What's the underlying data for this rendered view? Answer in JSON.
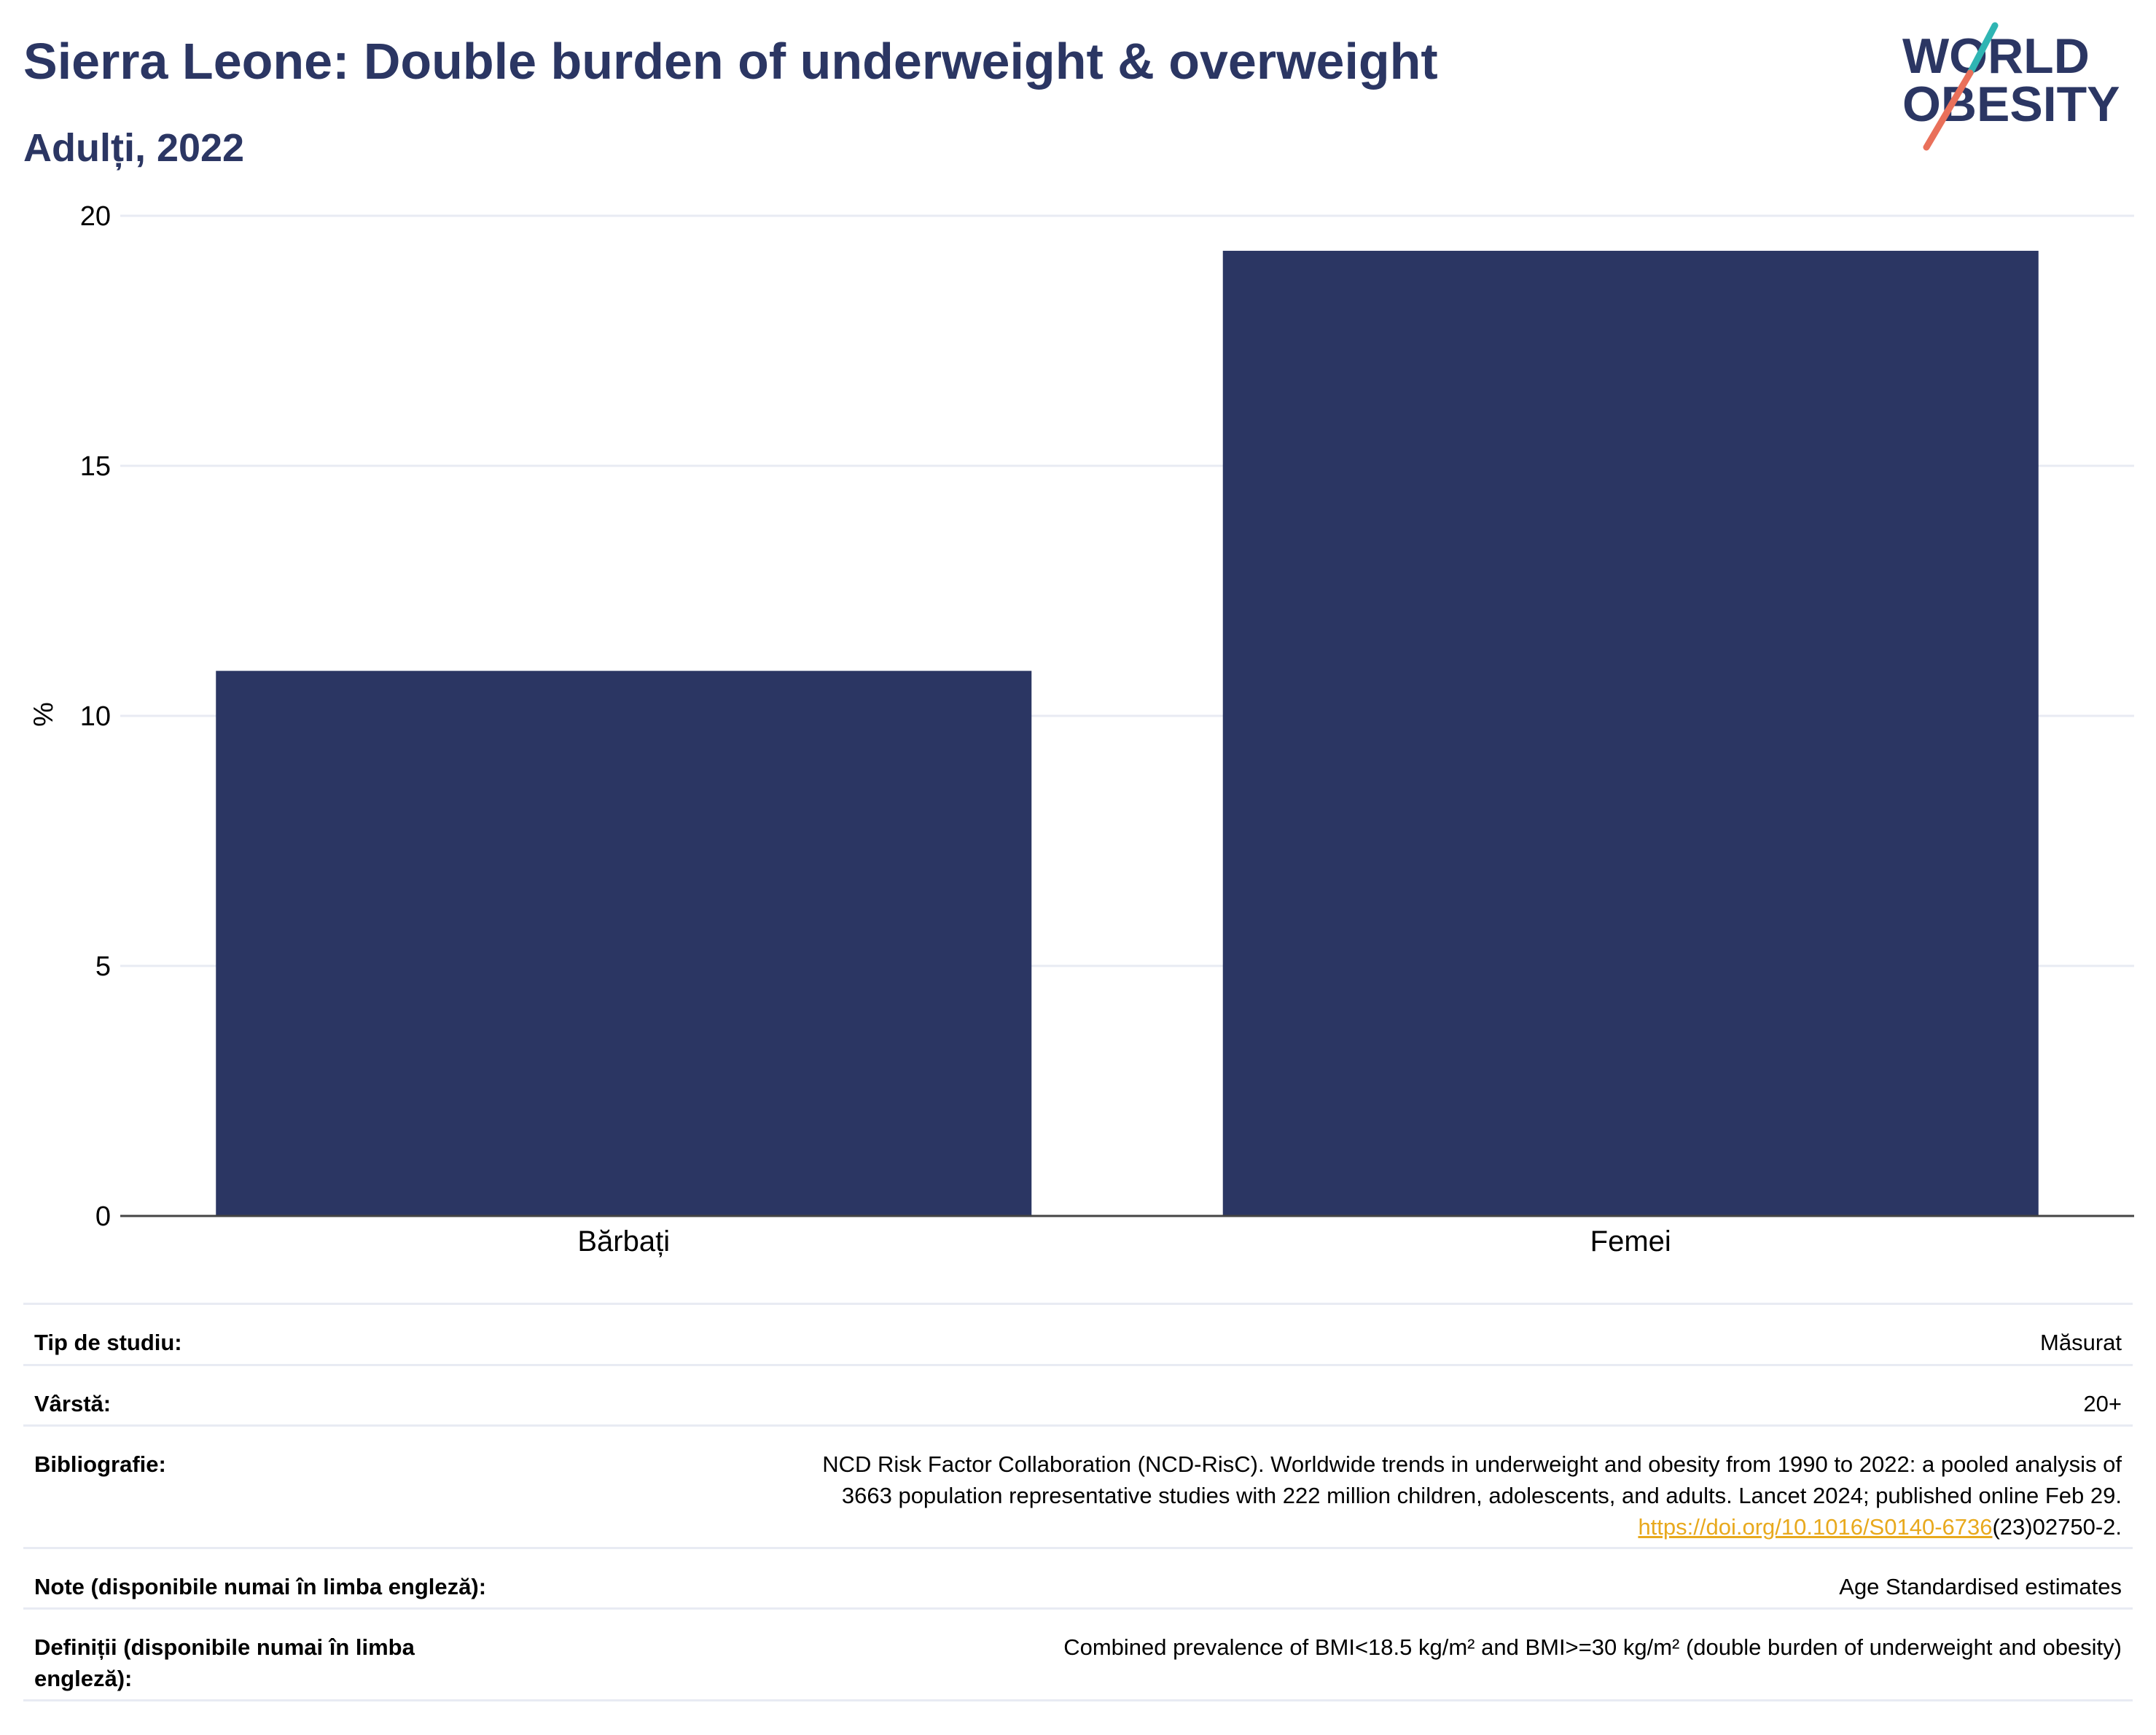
{
  "title": "Sierra Leone: Double burden of underweight & overweight",
  "subtitle": "Adulți, 2022",
  "logo": {
    "line1": "WORLD",
    "line2": "OBESITY",
    "text_color": "#2b3663",
    "slash_teal": "#2fb5b3",
    "slash_coral": "#e9705a"
  },
  "colors": {
    "bar": "#2b3663",
    "title": "#2b3663",
    "gridline": "#e8ebf3",
    "link": "#e8a91d"
  },
  "chart_data": {
    "type": "bar",
    "categories": [
      "Bărbați",
      "Femei"
    ],
    "values": [
      10.9,
      19.3
    ],
    "ylabel": "%",
    "xlabel": "",
    "ylim": [
      0,
      20
    ],
    "yticks": [
      0,
      5,
      10,
      15,
      20
    ],
    "grid": true
  },
  "meta": {
    "study_type_label": "Tip de studiu:",
    "study_type_value": "Măsurat",
    "age_label": "Vârstă:",
    "age_value": "20+",
    "bibliography_label": "Bibliografie:",
    "bibliography_line1": "NCD Risk Factor Collaboration (NCD-RisC). Worldwide trends in underweight and obesity from 1990 to 2022: a pooled analysis of",
    "bibliography_line2": "3663 population representative studies with 222 million children, adolescents, and adults. Lancet 2024; published online Feb 29.",
    "bibliography_link": "https://doi.org/10.1016/S0140-6736",
    "bibliography_tail": "(23)02750-2.",
    "notes_label": "Note (disponibile numai în limba engleză):",
    "notes_value": "Age Standardised estimates",
    "definitions_label": "Definiții (disponibile numai în limba engleză):",
    "definitions_value": "Combined prevalence of BMI<18.5 kg/m² and BMI>=30 kg/m² (double burden of underweight and obesity)"
  }
}
